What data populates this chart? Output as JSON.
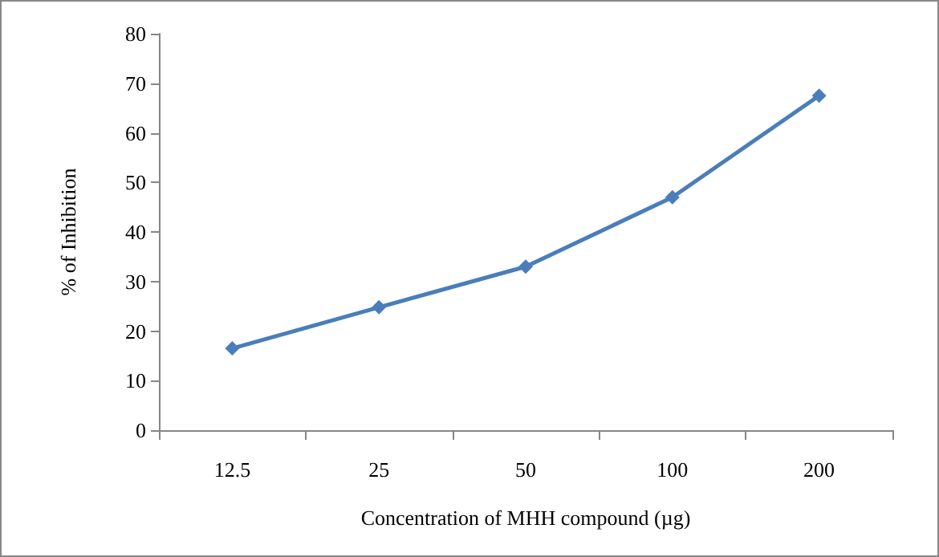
{
  "chart_data": {
    "type": "line",
    "xlabel": "Concentration of MHH compound (µg)",
    "ylabel": "% of Inhibition",
    "categories": [
      "12.5",
      "25",
      "50",
      "100",
      "200"
    ],
    "series": [
      {
        "color": "#4a7ebb",
        "values": [
          16.5,
          24.8,
          33,
          47,
          67.5
        ]
      }
    ],
    "ylim": [
      0,
      80
    ],
    "yticks": [
      0,
      10,
      20,
      30,
      40,
      50,
      60,
      70,
      80
    ],
    "grid": false,
    "marker": "diamond",
    "line_style": "solid"
  }
}
